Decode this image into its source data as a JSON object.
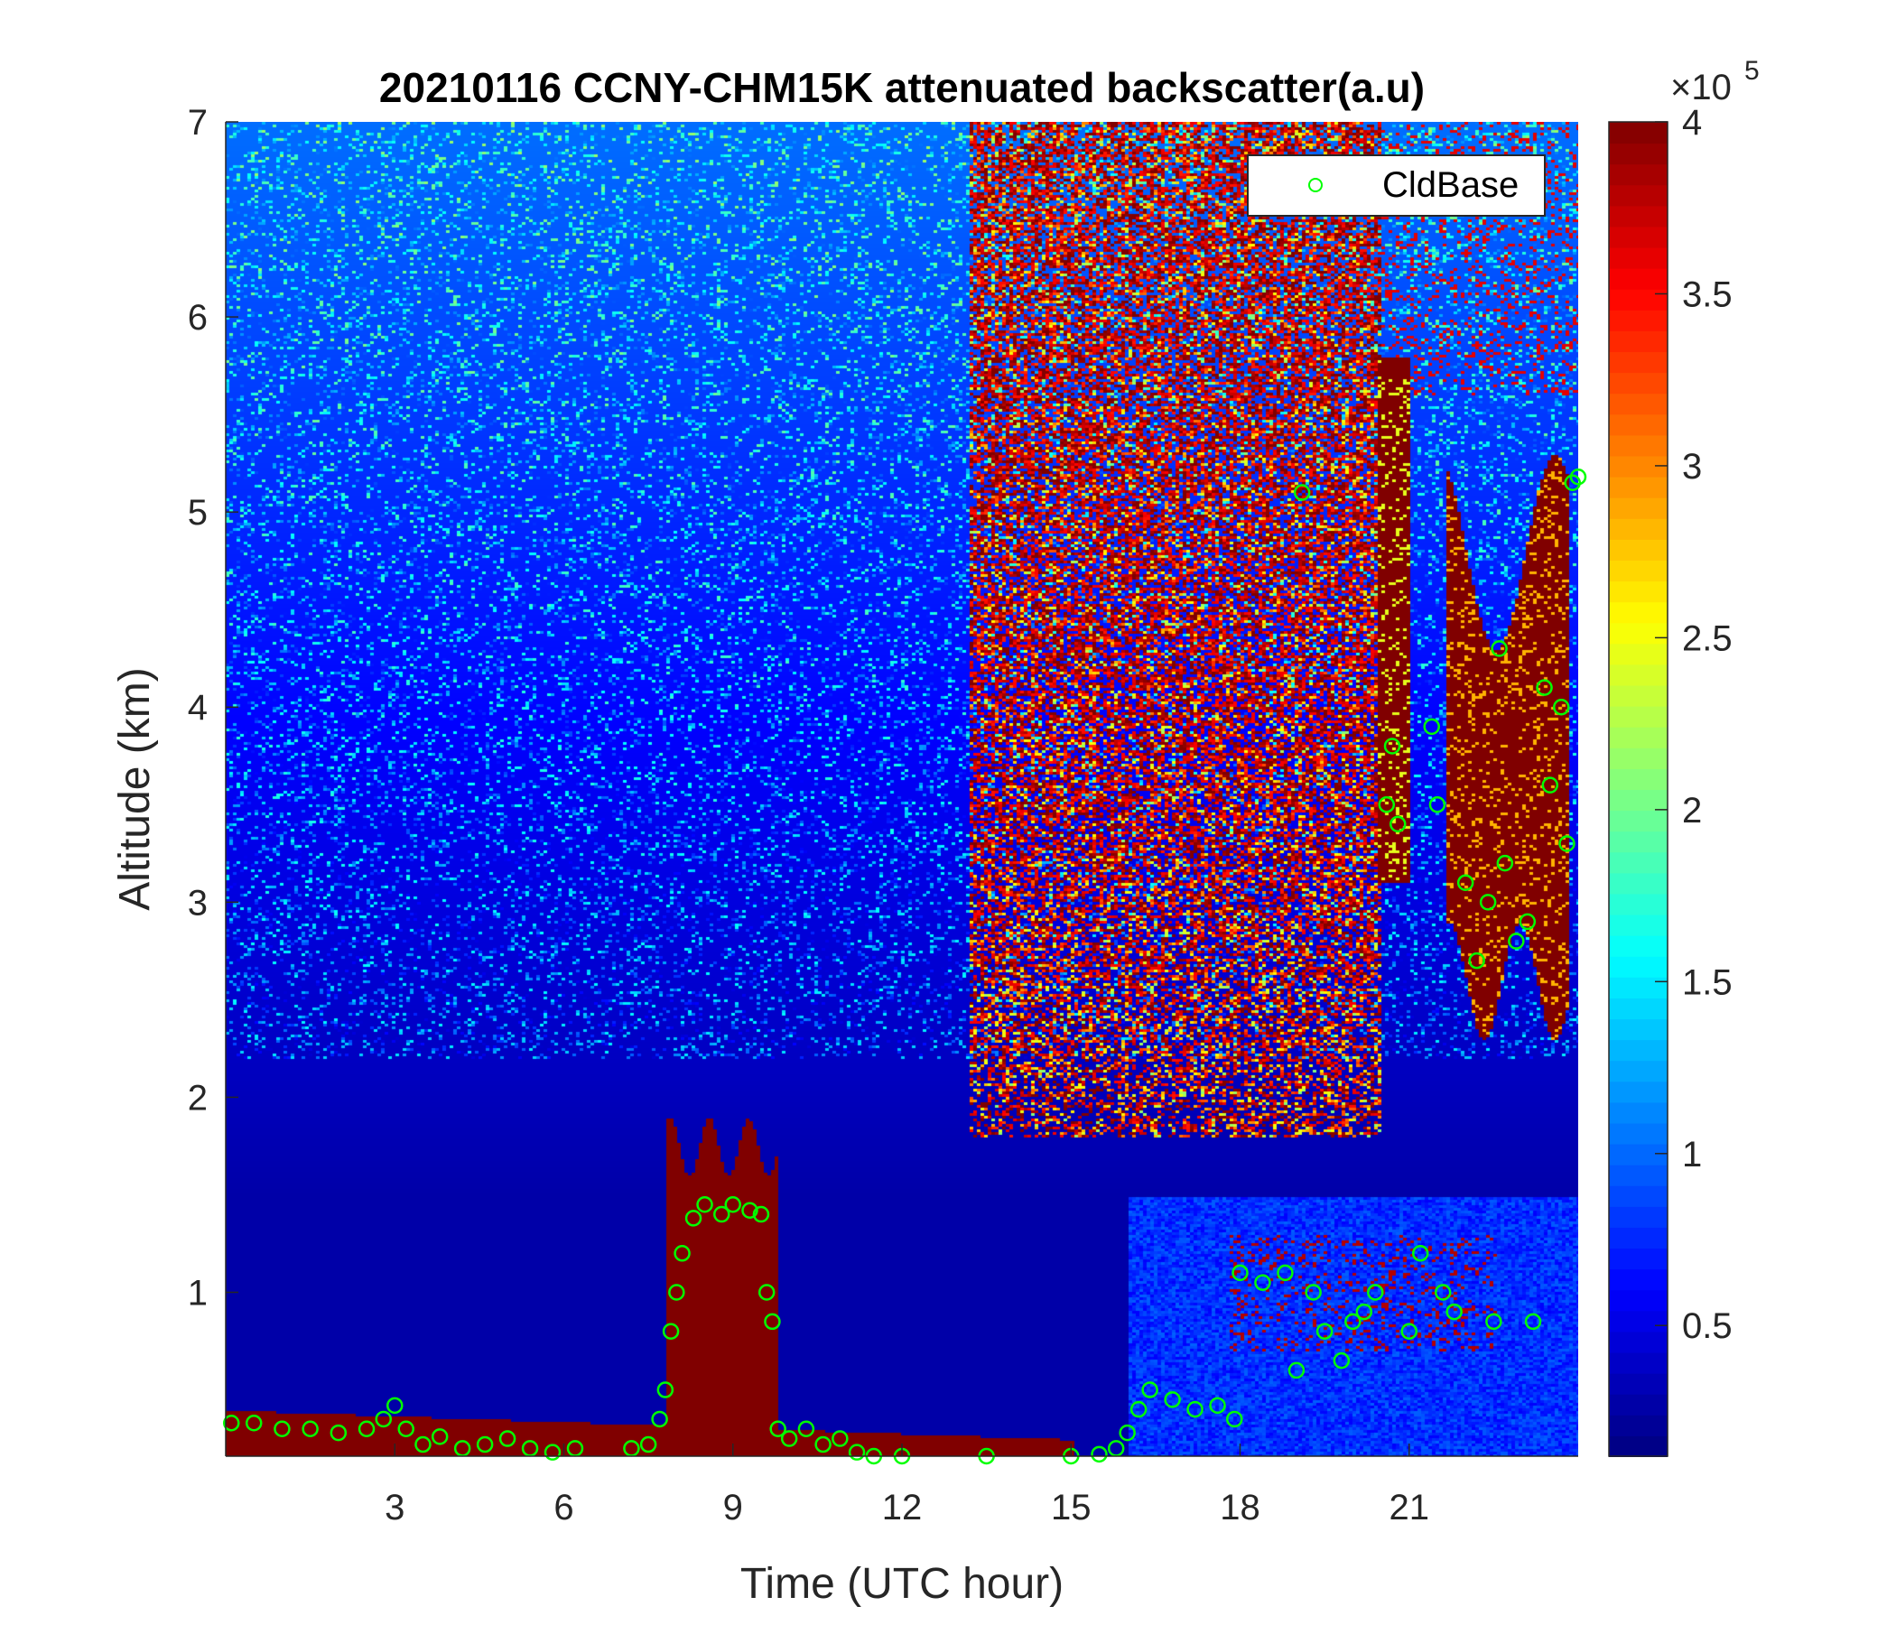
{
  "chart_data": {
    "type": "heatmap",
    "title": "20210116 CCNY-CHM15K attenuated backscatter(a.u)",
    "xlabel": "Time (UTC hour)",
    "ylabel": "Altitude (km)",
    "xlim": [
      0,
      24
    ],
    "ylim": [
      0.16,
      7
    ],
    "xticks": [
      3,
      6,
      9,
      12,
      15,
      18,
      21
    ],
    "yticks": [
      1,
      2,
      3,
      4,
      5,
      6,
      7
    ],
    "colorbar": {
      "colormap": "jet",
      "clim": [
        0.12,
        4
      ],
      "ticks": [
        0.5,
        1,
        1.5,
        2,
        2.5,
        3,
        3.5,
        4
      ],
      "exponent_label": "×10",
      "exponent": "5"
    },
    "legend": {
      "entries": [
        "CldBase"
      ],
      "placement": "top-right"
    },
    "series": [
      {
        "name": "CldBase",
        "type": "scatter",
        "marker": "circle",
        "color": "#00ff00",
        "points": [
          [
            0.1,
            0.33
          ],
          [
            0.5,
            0.33
          ],
          [
            1,
            0.3
          ],
          [
            1.5,
            0.3
          ],
          [
            2,
            0.28
          ],
          [
            2.5,
            0.3
          ],
          [
            2.8,
            0.35
          ],
          [
            3,
            0.42
          ],
          [
            3.2,
            0.3
          ],
          [
            3.5,
            0.22
          ],
          [
            3.8,
            0.26
          ],
          [
            4.2,
            0.2
          ],
          [
            4.6,
            0.22
          ],
          [
            5,
            0.25
          ],
          [
            5.4,
            0.2
          ],
          [
            5.8,
            0.18
          ],
          [
            6.2,
            0.2
          ],
          [
            7.2,
            0.2
          ],
          [
            7.5,
            0.22
          ],
          [
            7.7,
            0.35
          ],
          [
            7.8,
            0.5
          ],
          [
            7.9,
            0.8
          ],
          [
            8,
            1.0
          ],
          [
            8.1,
            1.2
          ],
          [
            8.3,
            1.38
          ],
          [
            8.5,
            1.45
          ],
          [
            8.8,
            1.4
          ],
          [
            9,
            1.45
          ],
          [
            9.3,
            1.42
          ],
          [
            9.5,
            1.4
          ],
          [
            9.6,
            1.0
          ],
          [
            9.7,
            0.85
          ],
          [
            9.8,
            0.3
          ],
          [
            10,
            0.25
          ],
          [
            10.3,
            0.3
          ],
          [
            10.6,
            0.22
          ],
          [
            10.9,
            0.25
          ],
          [
            11.2,
            0.18
          ],
          [
            11.5,
            0.16
          ],
          [
            12,
            0.16
          ],
          [
            13.5,
            0.16
          ],
          [
            15,
            0.16
          ],
          [
            15.5,
            0.17
          ],
          [
            15.8,
            0.2
          ],
          [
            16,
            0.28
          ],
          [
            16.2,
            0.4
          ],
          [
            16.4,
            0.5
          ],
          [
            16.8,
            0.45
          ],
          [
            17.2,
            0.4
          ],
          [
            17.6,
            0.42
          ],
          [
            17.9,
            0.35
          ],
          [
            18,
            1.1
          ],
          [
            18.4,
            1.05
          ],
          [
            18.8,
            1.1
          ],
          [
            19,
            0.6
          ],
          [
            19.1,
            5.1
          ],
          [
            19.3,
            1.0
          ],
          [
            19.5,
            0.8
          ],
          [
            19.8,
            0.65
          ],
          [
            20,
            0.85
          ],
          [
            20.2,
            0.9
          ],
          [
            20.4,
            1.0
          ],
          [
            20.6,
            3.5
          ],
          [
            20.7,
            3.8
          ],
          [
            20.8,
            3.4
          ],
          [
            21,
            0.8
          ],
          [
            21.2,
            1.2
          ],
          [
            21.4,
            3.9
          ],
          [
            21.5,
            3.5
          ],
          [
            21.6,
            1.0
          ],
          [
            21.8,
            0.9
          ],
          [
            22,
            3.1
          ],
          [
            22.2,
            2.7
          ],
          [
            22.4,
            3.0
          ],
          [
            22.5,
            0.85
          ],
          [
            22.6,
            4.3
          ],
          [
            22.7,
            3.2
          ],
          [
            22.9,
            2.8
          ],
          [
            23.1,
            2.9
          ],
          [
            23.2,
            0.85
          ],
          [
            23.4,
            4.1
          ],
          [
            23.5,
            3.6
          ],
          [
            23.7,
            4.0
          ],
          [
            23.8,
            3.3
          ],
          [
            23.9,
            5.15
          ],
          [
            24,
            5.18
          ]
        ]
      }
    ]
  }
}
